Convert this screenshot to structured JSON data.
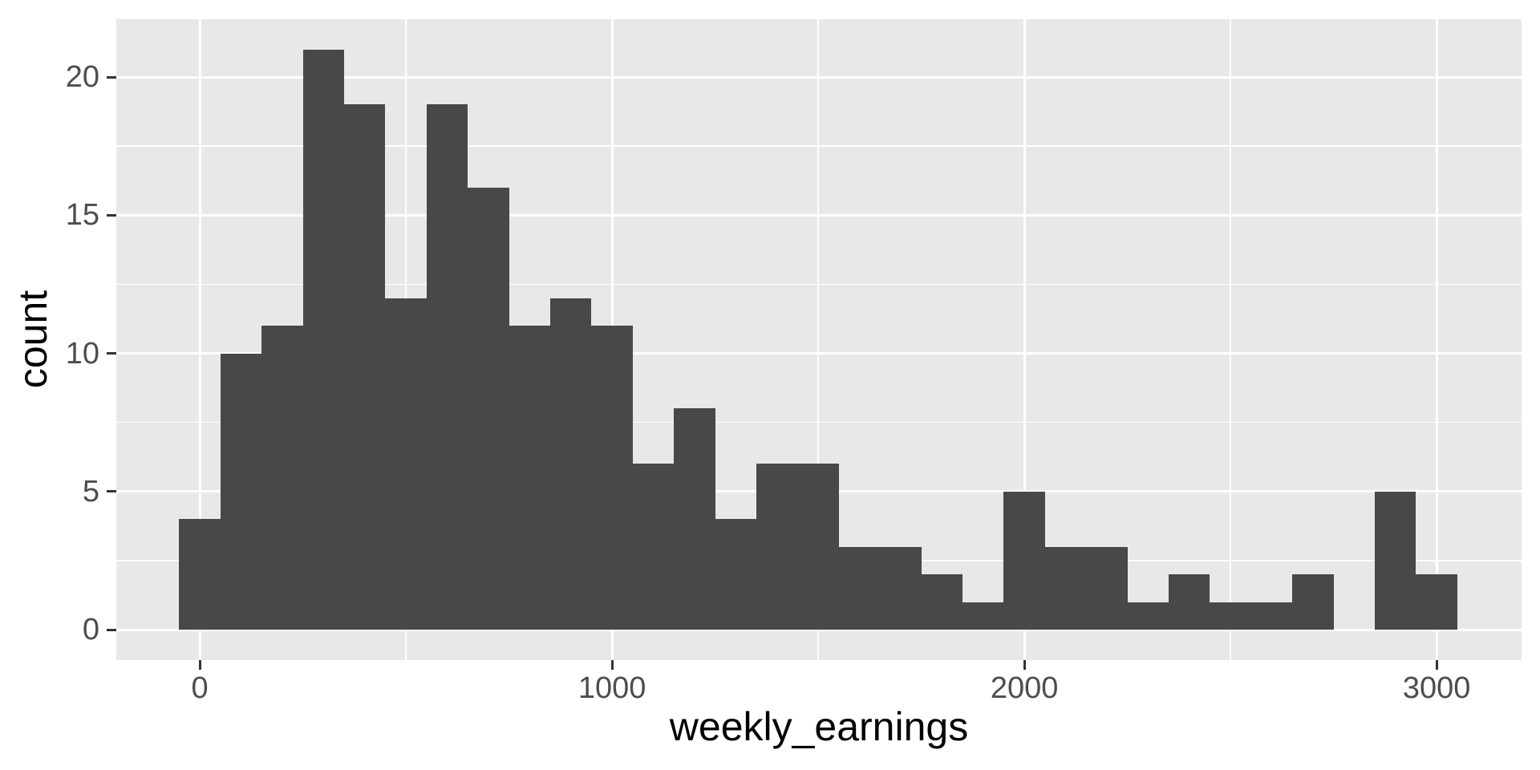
{
  "chart_data": {
    "type": "bar",
    "subtype": "histogram",
    "title": "",
    "xlabel": "weekly_earnings",
    "ylabel": "count",
    "bin_width": 100,
    "categories": [
      0,
      100,
      200,
      300,
      400,
      500,
      600,
      700,
      800,
      900,
      1000,
      1100,
      1200,
      1300,
      1400,
      1500,
      1600,
      1700,
      1800,
      1900,
      2000,
      2100,
      2200,
      2300,
      2400,
      2500,
      2600,
      2700,
      2800,
      2900,
      3000
    ],
    "values": [
      4,
      10,
      11,
      21,
      19,
      12,
      19,
      16,
      11,
      12,
      11,
      6,
      8,
      4,
      6,
      6,
      3,
      3,
      2,
      1,
      5,
      3,
      3,
      1,
      2,
      1,
      1,
      2,
      0,
      5,
      2
    ],
    "x_ticks": [
      0,
      1000,
      2000,
      3000
    ],
    "x_minor_gridlines": [
      500,
      1500,
      2500
    ],
    "y_ticks": [
      0,
      5,
      10,
      15,
      20
    ],
    "y_minor_gridlines": [
      2.5,
      7.5,
      12.5,
      17.5
    ],
    "xlim": [
      -202,
      3206
    ],
    "ylim": [
      -1.1,
      22.1
    ],
    "grid": true,
    "legend_position": "none"
  },
  "colors": {
    "bar_fill": "#484848",
    "panel_background": "#E8E8E8",
    "gridline": "#FFFFFF",
    "tick_label_text": "#4D4D4D",
    "axis_title_text": "#000000",
    "tick_mark": "#333333",
    "page_background": "#FFFFFF"
  }
}
